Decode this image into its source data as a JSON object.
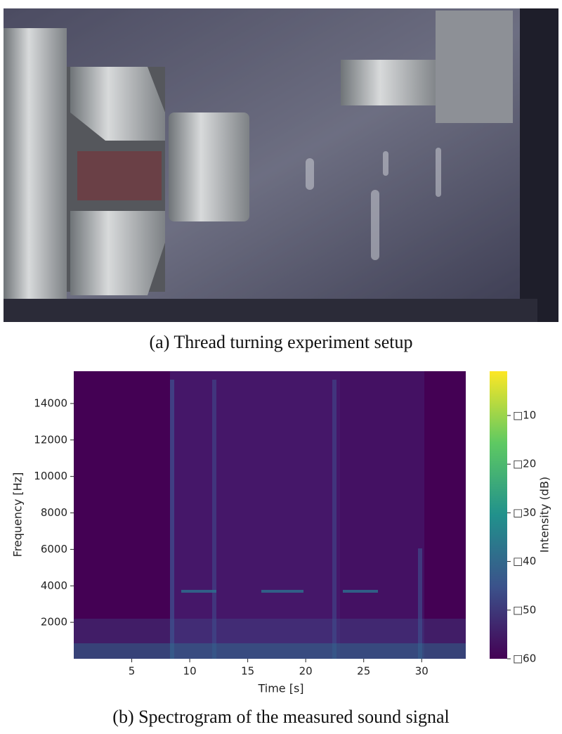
{
  "figure": {
    "caption_a": "(a) Thread turning experiment setup",
    "caption_b": "(b) Spectrogram of the measured sound signal"
  },
  "chart_data": {
    "type": "spectrogram",
    "xlabel": "Time [s]",
    "ylabel": "Frequency [Hz]",
    "xlim": [
      0,
      33.8
    ],
    "xticks": [
      5,
      10,
      15,
      20,
      25,
      30
    ],
    "ylim": [
      0,
      15770
    ],
    "yticks": [
      2000,
      4000,
      6000,
      8000,
      10000,
      12000,
      14000
    ],
    "colorbar": {
      "label": "Intensity (dB)",
      "clim": [
        -60,
        -0.9
      ],
      "colormap": "viridis",
      "ticks": [
        {
          "value": -10,
          "label": "□10"
        },
        {
          "value": -20,
          "label": "□20"
        },
        {
          "value": -30,
          "label": "□30"
        },
        {
          "value": -40,
          "label": "□40"
        },
        {
          "value": -50,
          "label": "□50"
        },
        {
          "value": -60,
          "label": "□60"
        }
      ]
    }
  }
}
